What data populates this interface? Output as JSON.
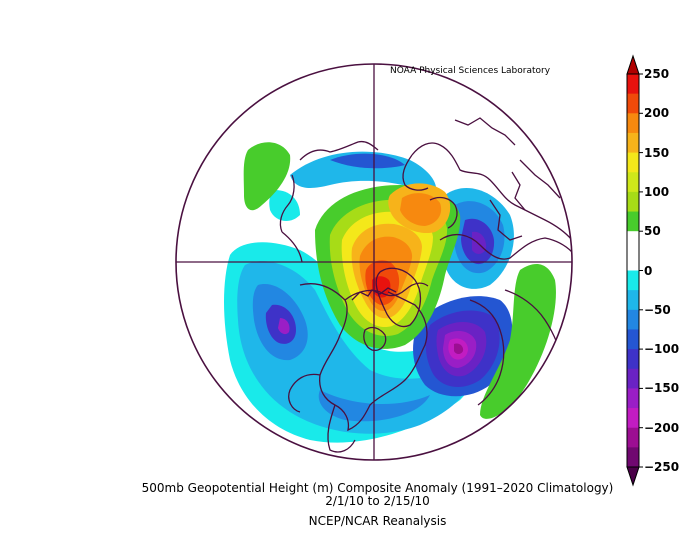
{
  "map": {
    "credit": "NOAA Physical Sciences Laboratory",
    "caption_line1": "500mb Geopotential Height (m) Composite Anomaly (1991–2020 Climatology)",
    "caption_line2": "2/1/10   to 2/15/10",
    "caption_line3": "NCEP/NCAR Reanalysis",
    "projection": "north-polar-stereographic",
    "variable": "500mb geopotential height anomaly",
    "units": "m"
  },
  "colorbar": {
    "ticks": [
      "250",
      "200",
      "150",
      "100",
      "50",
      "0",
      "−50",
      "−100",
      "−150",
      "−200",
      "−250"
    ],
    "colors": [
      "#e8120e",
      "#f04a0a",
      "#f7890f",
      "#f7b31a",
      "#f4e81a",
      "#cfe81a",
      "#a7dc17",
      "#48cc2c",
      "#ffffff",
      "#ffffff",
      "#19eaea",
      "#1fb7ea",
      "#2287e2",
      "#2456d2",
      "#3e32c8",
      "#6a22c4",
      "#9a1ec6",
      "#c21cc2",
      "#9c0e92",
      "#700870"
    ]
  },
  "anomalies": [
    {
      "name": "ridge-central-arctic",
      "sign": "positive",
      "peak_m": 250
    },
    {
      "name": "ridge-siberia",
      "sign": "positive",
      "peak_m": 150
    },
    {
      "name": "trough-eastern-siberia",
      "sign": "negative",
      "peak_m": -150
    },
    {
      "name": "trough-north-atlantic",
      "sign": "negative",
      "peak_m": -200
    },
    {
      "name": "trough-eastern-pacific",
      "sign": "negative",
      "peak_m": -150
    },
    {
      "name": "trough-north-america",
      "sign": "negative",
      "peak_m": -100
    },
    {
      "name": "ridge-north-africa",
      "sign": "positive",
      "peak_m": 50
    }
  ]
}
